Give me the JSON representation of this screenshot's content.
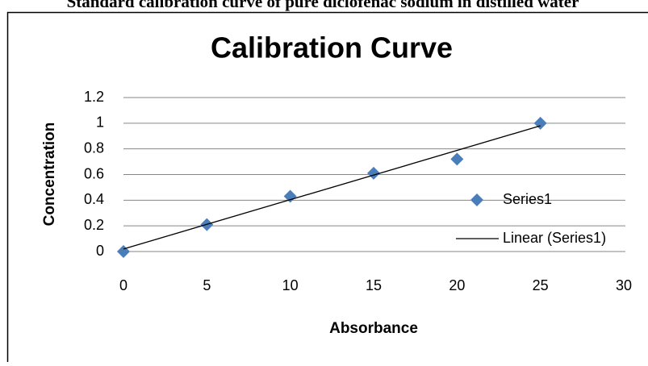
{
  "caption": "Standard calibration curve of pure diclofenac sodium in distilled water",
  "chart_data": {
    "type": "scatter",
    "title": "Calibration Curve",
    "x_label": "Absorbance",
    "y_label": "Concentration",
    "series": [
      {
        "name": "Series1",
        "color": "#4a7ebb",
        "x": [
          0,
          5,
          10,
          15,
          20,
          25
        ],
        "values": [
          0,
          0.21,
          0.43,
          0.61,
          0.72,
          1.0
        ]
      },
      {
        "name": "Linear (Series1)",
        "color": "#000000",
        "type": "line",
        "x": [
          0,
          25
        ],
        "values": [
          0.02,
          0.98
        ]
      }
    ],
    "xlim": [
      0,
      30
    ],
    "xticks": [
      0,
      5,
      10,
      15,
      20,
      25,
      30
    ],
    "ylim": [
      0,
      1.2
    ],
    "yticks": [
      0,
      0.2,
      0.4,
      0.6,
      0.8,
      1,
      1.2
    ],
    "grid": true,
    "legend": "right"
  }
}
